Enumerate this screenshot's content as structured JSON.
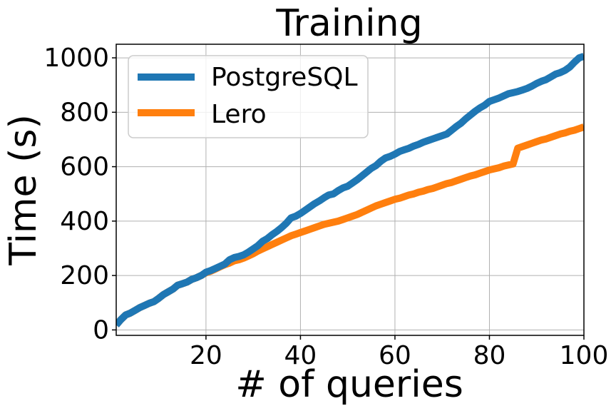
{
  "chart_data": {
    "type": "line",
    "title": "Training",
    "xlabel": "# of queries",
    "ylabel": "Time (s)",
    "xlim": [
      1,
      100
    ],
    "ylim": [
      -20,
      1050
    ],
    "xticks": [
      20,
      40,
      60,
      80,
      100
    ],
    "yticks": [
      0,
      200,
      400,
      600,
      800,
      1000
    ],
    "x_tick_labels": [
      "20",
      "40",
      "60",
      "80",
      "100"
    ],
    "y_tick_labels": [
      "0",
      "200",
      "400",
      "600",
      "800",
      "1000"
    ],
    "grid": true,
    "legend_position": "upper-left",
    "series": [
      {
        "name": "PostgreSQL",
        "color": "#1f77b4",
        "x": [
          1,
          2,
          3,
          4,
          5,
          6,
          7,
          8,
          9,
          10,
          11,
          12,
          13,
          14,
          15,
          16,
          17,
          18,
          19,
          20,
          21,
          22,
          23,
          24,
          25,
          26,
          27,
          28,
          29,
          30,
          31,
          32,
          33,
          34,
          35,
          36,
          37,
          38,
          39,
          40,
          41,
          42,
          43,
          44,
          45,
          46,
          47,
          48,
          49,
          50,
          51,
          52,
          53,
          54,
          55,
          56,
          57,
          58,
          59,
          60,
          61,
          62,
          63,
          64,
          65,
          66,
          67,
          68,
          69,
          70,
          71,
          72,
          73,
          74,
          75,
          76,
          77,
          78,
          79,
          80,
          81,
          82,
          83,
          84,
          85,
          86,
          87,
          88,
          89,
          90,
          91,
          92,
          93,
          94,
          95,
          96,
          97,
          98,
          99,
          100
        ],
        "values": [
          18,
          38,
          55,
          62,
          72,
          82,
          90,
          98,
          104,
          116,
          130,
          140,
          150,
          164,
          170,
          176,
          186,
          192,
          200,
          212,
          218,
          226,
          234,
          242,
          258,
          266,
          270,
          276,
          286,
          298,
          310,
          326,
          336,
          350,
          362,
          376,
          392,
          412,
          418,
          428,
          440,
          452,
          464,
          474,
          486,
          496,
          500,
          512,
          522,
          528,
          540,
          552,
          566,
          580,
          594,
          604,
          620,
          632,
          638,
          646,
          656,
          662,
          668,
          676,
          682,
          690,
          696,
          702,
          708,
          714,
          720,
          734,
          748,
          760,
          776,
          790,
          804,
          816,
          826,
          840,
          846,
          852,
          860,
          868,
          872,
          876,
          882,
          888,
          896,
          906,
          914,
          920,
          930,
          940,
          946,
          954,
          966,
          984,
          1000,
          1006
        ]
      },
      {
        "name": "Lero",
        "color": "#ff7f0e",
        "x": [
          1,
          2,
          3,
          4,
          5,
          6,
          7,
          8,
          9,
          10,
          11,
          12,
          13,
          14,
          15,
          16,
          17,
          18,
          19,
          20,
          21,
          22,
          23,
          24,
          25,
          26,
          27,
          28,
          29,
          30,
          31,
          32,
          33,
          34,
          35,
          36,
          37,
          38,
          39,
          40,
          41,
          42,
          43,
          44,
          45,
          46,
          47,
          48,
          49,
          50,
          51,
          52,
          53,
          54,
          55,
          56,
          57,
          58,
          59,
          60,
          61,
          62,
          63,
          64,
          65,
          66,
          67,
          68,
          69,
          70,
          71,
          72,
          73,
          74,
          75,
          76,
          77,
          78,
          79,
          80,
          81,
          82,
          83,
          84,
          85,
          86,
          87,
          88,
          89,
          90,
          91,
          92,
          93,
          94,
          95,
          96,
          97,
          98,
          99,
          100
        ],
        "values": [
          18,
          38,
          55,
          62,
          72,
          82,
          90,
          98,
          104,
          116,
          130,
          140,
          150,
          164,
          170,
          176,
          186,
          192,
          200,
          210,
          216,
          224,
          232,
          240,
          246,
          254,
          258,
          264,
          272,
          280,
          290,
          298,
          306,
          314,
          322,
          330,
          338,
          346,
          352,
          358,
          364,
          370,
          376,
          382,
          388,
          392,
          396,
          400,
          406,
          412,
          418,
          424,
          432,
          440,
          448,
          456,
          462,
          468,
          474,
          480,
          484,
          490,
          496,
          500,
          506,
          510,
          516,
          520,
          526,
          532,
          538,
          542,
          548,
          554,
          560,
          566,
          570,
          576,
          582,
          588,
          592,
          596,
          602,
          606,
          610,
          668,
          674,
          680,
          686,
          692,
          698,
          702,
          708,
          714,
          720,
          724,
          730,
          734,
          740,
          746
        ]
      }
    ]
  }
}
